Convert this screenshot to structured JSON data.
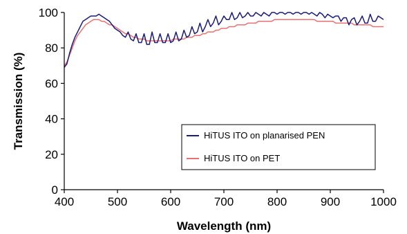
{
  "chart_data": {
    "type": "line",
    "title": "",
    "xlabel": "Wavelength (nm)",
    "ylabel": "Transmission (%)",
    "xlim": [
      400,
      1000
    ],
    "ylim": [
      0,
      100
    ],
    "x_ticks": [
      "400",
      "500",
      "600",
      "700",
      "800",
      "900",
      "1000"
    ],
    "y_ticks": [
      "0",
      "20",
      "40",
      "60",
      "80",
      "100"
    ],
    "grid": false,
    "legend_placement": "bottom-right",
    "series": [
      {
        "name": "HiTUS ITO on planarised PEN",
        "color": "#1a1a7a",
        "x": [
          400,
          405,
          410,
          415,
          420,
          425,
          430,
          435,
          440,
          445,
          450,
          455,
          460,
          465,
          470,
          475,
          480,
          485,
          490,
          495,
          500,
          505,
          510,
          515,
          520,
          525,
          530,
          535,
          540,
          545,
          550,
          555,
          560,
          565,
          570,
          575,
          580,
          585,
          590,
          595,
          600,
          605,
          610,
          615,
          620,
          625,
          630,
          635,
          640,
          645,
          650,
          655,
          660,
          665,
          670,
          675,
          680,
          685,
          690,
          695,
          700,
          705,
          710,
          715,
          720,
          725,
          730,
          735,
          740,
          745,
          750,
          755,
          760,
          765,
          770,
          775,
          780,
          785,
          790,
          795,
          800,
          805,
          810,
          815,
          820,
          825,
          830,
          835,
          840,
          845,
          850,
          855,
          860,
          865,
          870,
          875,
          880,
          885,
          890,
          895,
          900,
          905,
          910,
          915,
          920,
          925,
          930,
          935,
          940,
          945,
          950,
          955,
          960,
          965,
          970,
          975,
          980,
          985,
          990,
          995,
          1000
        ],
        "values": [
          69,
          71,
          77,
          82,
          86,
          89,
          92,
          95,
          96,
          97,
          98,
          98,
          98,
          99,
          98,
          97,
          96,
          95,
          93,
          91,
          90,
          89,
          87,
          86,
          89,
          85,
          84,
          88,
          83,
          83,
          88,
          82,
          82,
          89,
          83,
          83,
          88,
          83,
          83,
          88,
          83,
          84,
          89,
          84,
          85,
          90,
          86,
          87,
          92,
          88,
          89,
          94,
          89,
          92,
          96,
          92,
          94,
          98,
          93,
          95,
          98,
          96,
          96,
          100,
          96,
          97,
          100,
          97,
          98,
          100,
          98,
          98,
          100,
          99,
          98,
          100,
          99,
          98,
          100,
          100,
          99,
          100,
          100,
          99,
          100,
          100,
          99,
          100,
          100,
          99,
          100,
          100,
          99,
          100,
          99,
          98,
          100,
          99,
          97,
          99,
          98,
          97,
          98,
          98,
          95,
          97,
          97,
          93,
          96,
          97,
          93,
          95,
          98,
          94,
          94,
          99,
          95,
          95,
          98,
          97,
          96
        ]
      },
      {
        "name": "HiTUS ITO on PET",
        "color": "#e87070",
        "x": [
          400,
          405,
          410,
          415,
          420,
          425,
          430,
          435,
          440,
          445,
          450,
          455,
          460,
          465,
          470,
          475,
          480,
          485,
          490,
          495,
          500,
          505,
          510,
          515,
          520,
          525,
          530,
          535,
          540,
          545,
          550,
          555,
          560,
          565,
          570,
          575,
          580,
          585,
          590,
          595,
          600,
          605,
          610,
          615,
          620,
          625,
          630,
          635,
          640,
          645,
          650,
          655,
          660,
          665,
          670,
          675,
          680,
          685,
          690,
          695,
          700,
          705,
          710,
          715,
          720,
          725,
          730,
          735,
          740,
          745,
          750,
          755,
          760,
          765,
          770,
          775,
          780,
          785,
          790,
          795,
          800,
          805,
          810,
          815,
          820,
          825,
          830,
          835,
          840,
          845,
          850,
          855,
          860,
          865,
          870,
          875,
          880,
          885,
          890,
          895,
          900,
          905,
          910,
          915,
          920,
          925,
          930,
          935,
          940,
          945,
          950,
          955,
          960,
          965,
          970,
          975,
          980,
          985,
          990,
          995,
          1000
        ],
        "values": [
          70,
          72,
          76,
          80,
          84,
          87,
          89,
          91,
          93,
          94,
          95,
          96,
          96,
          96,
          95,
          95,
          94,
          93,
          93,
          92,
          91,
          90,
          89,
          88,
          88,
          87,
          86,
          86,
          85,
          85,
          85,
          84,
          84,
          84,
          84,
          84,
          84,
          84,
          84,
          84,
          84,
          85,
          85,
          85,
          85,
          85,
          86,
          86,
          86,
          87,
          87,
          87,
          88,
          88,
          89,
          89,
          89,
          90,
          90,
          91,
          91,
          91,
          92,
          92,
          92,
          93,
          93,
          93,
          93,
          94,
          94,
          94,
          94,
          95,
          95,
          95,
          95,
          95,
          95,
          96,
          96,
          96,
          96,
          96,
          96,
          96,
          96,
          96,
          96,
          96,
          96,
          96,
          96,
          96,
          96,
          95,
          95,
          95,
          95,
          95,
          95,
          95,
          94,
          94,
          94,
          94,
          94,
          94,
          94,
          93,
          93,
          93,
          93,
          93,
          93,
          93,
          92,
          92,
          92,
          92,
          92
        ]
      }
    ]
  }
}
